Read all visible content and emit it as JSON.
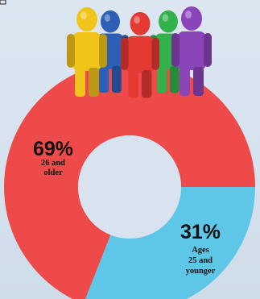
{
  "chart_data": {
    "type": "pie",
    "style": "donut",
    "slices": [
      {
        "value": 69,
        "label": "69%",
        "description_lines": [
          "26 and",
          "older"
        ],
        "color": "#ef4a4a"
      },
      {
        "value": 31,
        "label": "31%",
        "description_lines": [
          "Ages",
          "25 and",
          "younger"
        ],
        "color": "#5ec6e6"
      }
    ]
  },
  "illustration": {
    "figures": [
      {
        "icon": "person-figure-icon",
        "color": "#f0c419"
      },
      {
        "icon": "person-figure-icon",
        "color": "#2e5fb6"
      },
      {
        "icon": "person-figure-icon",
        "color": "#e53a33"
      },
      {
        "icon": "person-figure-icon",
        "color": "#33b14a"
      },
      {
        "icon": "person-figure-icon",
        "color": "#8a45b8"
      }
    ]
  }
}
